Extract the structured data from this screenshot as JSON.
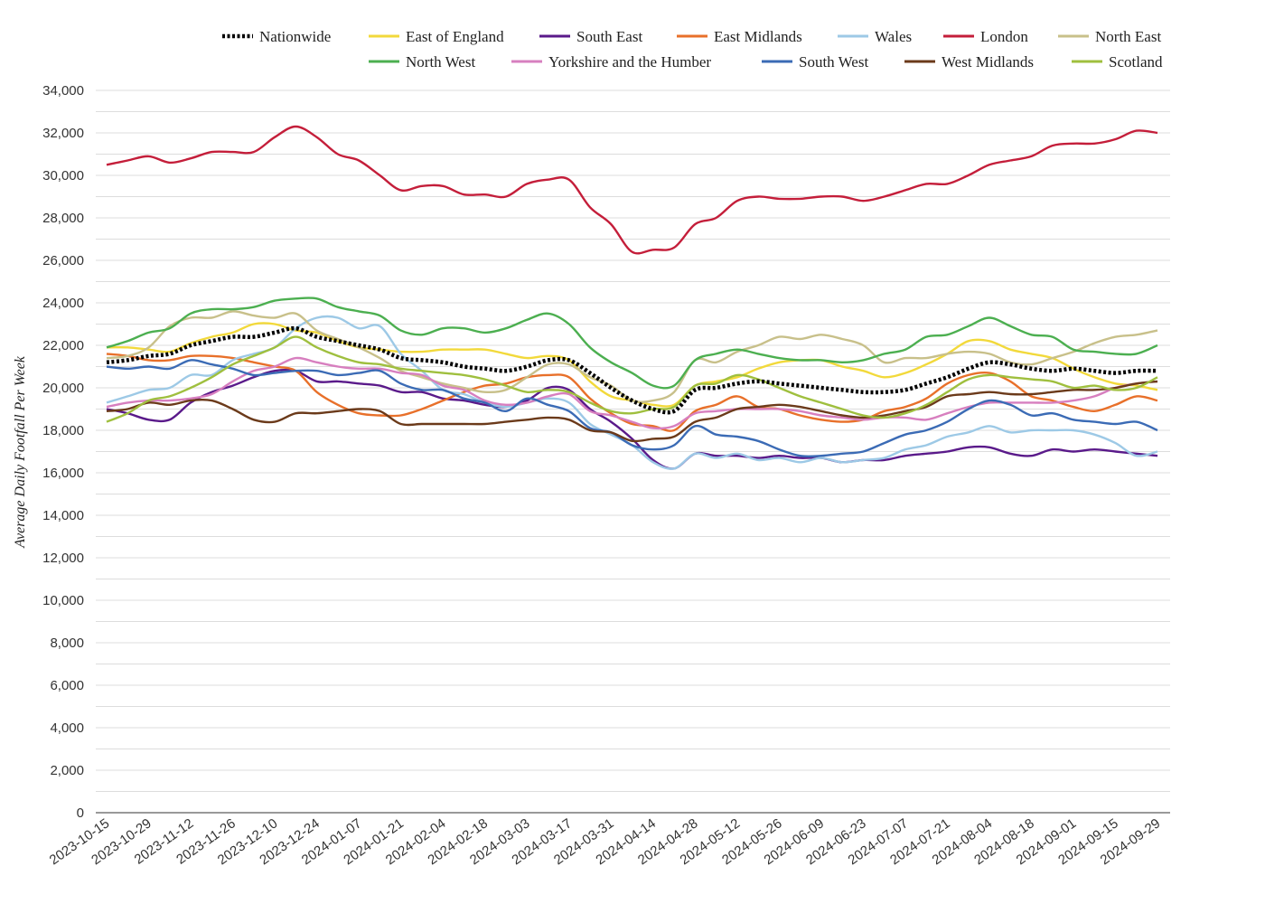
{
  "chart_data": {
    "type": "line",
    "title": "",
    "xlabel": "",
    "ylabel": "Average Daily Footfall Per Week",
    "ylim": [
      0,
      34000
    ],
    "yticks": [
      "0",
      "2,000",
      "4,000",
      "6,000",
      "8,000",
      "10,000",
      "12,000",
      "14,000",
      "16,000",
      "18,000",
      "20,000",
      "22,000",
      "24,000",
      "26,000",
      "28,000",
      "30,000",
      "32,000",
      "34,000"
    ],
    "grid": true,
    "legend_position": "top",
    "x_tick_labels": [
      "2023-10-15",
      "2023-10-29",
      "2023-11-12",
      "2023-11-26",
      "2023-12-10",
      "2023-12-24",
      "2024-01-07",
      "2024-01-21",
      "2024-02-04",
      "2024-02-18",
      "2024-03-03",
      "2024-03-17",
      "2024-03-31",
      "2024-04-14",
      "2024-04-28",
      "2024-05-12",
      "2024-05-26",
      "2024-06-09",
      "2024-06-23",
      "2024-07-07",
      "2024-07-21",
      "2024-08-04",
      "2024-08-18",
      "2024-09-01",
      "2024-09-15",
      "2024-09-29"
    ],
    "x": [
      "2023-10-15",
      "2023-10-22",
      "2023-10-29",
      "2023-11-05",
      "2023-11-12",
      "2023-11-19",
      "2023-11-26",
      "2023-12-03",
      "2023-12-10",
      "2023-12-17",
      "2023-12-24",
      "2023-12-31",
      "2024-01-07",
      "2024-01-14",
      "2024-01-21",
      "2024-01-28",
      "2024-02-04",
      "2024-02-11",
      "2024-02-18",
      "2024-02-25",
      "2024-03-03",
      "2024-03-10",
      "2024-03-17",
      "2024-03-24",
      "2024-03-31",
      "2024-04-07",
      "2024-04-14",
      "2024-04-21",
      "2024-04-28",
      "2024-05-05",
      "2024-05-12",
      "2024-05-19",
      "2024-05-26",
      "2024-06-02",
      "2024-06-09",
      "2024-06-16",
      "2024-06-23",
      "2024-06-30",
      "2024-07-07",
      "2024-07-14",
      "2024-07-21",
      "2024-07-28",
      "2024-08-04",
      "2024-08-11",
      "2024-08-18",
      "2024-08-25",
      "2024-09-01",
      "2024-09-08",
      "2024-09-15",
      "2024-09-22",
      "2024-09-29"
    ],
    "series": [
      {
        "name": "Nationwide",
        "color": "#000000",
        "dashed": true,
        "values": [
          21200,
          21300,
          21500,
          21600,
          22000,
          22200,
          22400,
          22400,
          22600,
          22800,
          22400,
          22200,
          22000,
          21800,
          21400,
          21300,
          21200,
          21000,
          20900,
          20800,
          21000,
          21300,
          21300,
          20700,
          20000,
          19400,
          19000,
          18900,
          19900,
          20000,
          20200,
          20300,
          20200,
          20100,
          20000,
          19900,
          19800,
          19800,
          19900,
          20200,
          20500,
          20900,
          21200,
          21100,
          20900,
          20800,
          20900,
          20800,
          20700,
          20800,
          20800
        ]
      },
      {
        "name": "East of England",
        "color": "#f2d93b",
        "values": [
          21900,
          21900,
          21800,
          21700,
          22100,
          22400,
          22600,
          23000,
          23000,
          22700,
          22600,
          22200,
          21900,
          21800,
          21700,
          21700,
          21800,
          21800,
          21800,
          21600,
          21400,
          21500,
          21300,
          20300,
          19600,
          19400,
          19200,
          19200,
          20100,
          20300,
          20500,
          20900,
          21200,
          21300,
          21300,
          21000,
          20800,
          20500,
          20700,
          21100,
          21600,
          22200,
          22200,
          21800,
          21600,
          21400,
          20900,
          20500,
          20200,
          20100,
          19900
        ]
      },
      {
        "name": "South East",
        "color": "#5a1a8a",
        "values": [
          19000,
          18800,
          18500,
          18500,
          19300,
          19800,
          20100,
          20500,
          20800,
          20800,
          20300,
          20300,
          20200,
          20100,
          19800,
          19800,
          19500,
          19400,
          19200,
          19100,
          19400,
          20000,
          19900,
          19000,
          18400,
          17600,
          16600,
          16200,
          16900,
          16800,
          16800,
          16700,
          16800,
          16700,
          16700,
          16500,
          16600,
          16600,
          16800,
          16900,
          17000,
          17200,
          17200,
          16900,
          16800,
          17100,
          17000,
          17100,
          17000,
          16900,
          16800
        ]
      },
      {
        "name": "East Midlands",
        "color": "#e8702a",
        "values": [
          21600,
          21500,
          21300,
          21300,
          21500,
          21500,
          21400,
          21200,
          21000,
          20800,
          19800,
          19200,
          18800,
          18700,
          18700,
          19000,
          19400,
          19800,
          20100,
          20200,
          20500,
          20600,
          20500,
          19500,
          18800,
          18300,
          18200,
          18000,
          18900,
          19200,
          19600,
          19100,
          19000,
          18700,
          18500,
          18400,
          18500,
          18900,
          19100,
          19500,
          20200,
          20600,
          20700,
          20300,
          19600,
          19400,
          19100,
          18900,
          19200,
          19600,
          19400
        ]
      },
      {
        "name": "Wales",
        "color": "#9dc9e6",
        "values": [
          19300,
          19600,
          19900,
          20000,
          20600,
          20600,
          21300,
          21600,
          21900,
          22800,
          23300,
          23300,
          22800,
          22900,
          21600,
          20800,
          19900,
          19700,
          19300,
          19100,
          19300,
          19500,
          19300,
          18300,
          17800,
          17300,
          16500,
          16200,
          16900,
          16700,
          16900,
          16600,
          16700,
          16500,
          16700,
          16500,
          16600,
          16700,
          17100,
          17300,
          17700,
          17900,
          18200,
          17900,
          18000,
          18000,
          18000,
          17800,
          17400,
          16800,
          17000
        ]
      },
      {
        "name": "London",
        "color": "#c41e3a",
        "values": [
          30500,
          30700,
          30900,
          30600,
          30800,
          31100,
          31100,
          31100,
          31800,
          32300,
          31800,
          31000,
          30700,
          30000,
          29300,
          29500,
          29500,
          29100,
          29100,
          29000,
          29600,
          29800,
          29800,
          28500,
          27700,
          26400,
          26500,
          26600,
          27700,
          28000,
          28800,
          29000,
          28900,
          28900,
          29000,
          29000,
          28800,
          29000,
          29300,
          29600,
          29600,
          30000,
          30500,
          30700,
          30900,
          31400,
          31500,
          31500,
          31700,
          32100,
          32000
        ]
      },
      {
        "name": "North East",
        "color": "#c8c08a",
        "values": [
          21400,
          21500,
          21900,
          22900,
          23300,
          23300,
          23600,
          23400,
          23300,
          23500,
          22700,
          22300,
          21900,
          21400,
          20800,
          20500,
          20200,
          20000,
          19800,
          19900,
          20500,
          21100,
          21100,
          20500,
          20100,
          19400,
          19400,
          19800,
          21300,
          21200,
          21700,
          22000,
          22400,
          22300,
          22500,
          22300,
          22000,
          21200,
          21400,
          21400,
          21600,
          21700,
          21600,
          21200,
          21100,
          21400,
          21700,
          22100,
          22400,
          22500,
          22700
        ]
      },
      {
        "name": "North West",
        "color": "#4caf50",
        "values": [
          21900,
          22200,
          22600,
          22800,
          23500,
          23700,
          23700,
          23800,
          24100,
          24200,
          24200,
          23800,
          23600,
          23400,
          22700,
          22500,
          22800,
          22800,
          22600,
          22800,
          23200,
          23500,
          23000,
          21900,
          21200,
          20700,
          20100,
          20100,
          21300,
          21600,
          21800,
          21600,
          21400,
          21300,
          21300,
          21200,
          21300,
          21600,
          21800,
          22400,
          22500,
          22900,
          23300,
          22900,
          22500,
          22400,
          21800,
          21700,
          21600,
          21600,
          22000
        ]
      },
      {
        "name": "Yorkshire and the Humber",
        "color": "#d77fbf",
        "values": [
          19100,
          19300,
          19400,
          19400,
          19500,
          19700,
          20300,
          20800,
          21000,
          21400,
          21200,
          21000,
          20900,
          20900,
          20700,
          20600,
          20100,
          19900,
          19400,
          19200,
          19300,
          19600,
          19700,
          18900,
          18700,
          18400,
          18100,
          18200,
          18800,
          18900,
          19000,
          19000,
          19000,
          18900,
          18700,
          18600,
          18500,
          18600,
          18600,
          18500,
          18800,
          19100,
          19300,
          19300,
          19300,
          19300,
          19400,
          19600,
          20000,
          20200,
          20300
        ]
      },
      {
        "name": "South West",
        "color": "#3b6bb5",
        "values": [
          21000,
          20900,
          21000,
          20900,
          21300,
          21100,
          20900,
          20600,
          20700,
          20800,
          20800,
          20600,
          20700,
          20800,
          20200,
          19900,
          19900,
          19500,
          19300,
          18900,
          19500,
          19200,
          18900,
          18100,
          17900,
          17300,
          17100,
          17300,
          18200,
          17800,
          17700,
          17500,
          17100,
          16800,
          16800,
          16900,
          17000,
          17400,
          17800,
          18000,
          18400,
          19000,
          19400,
          19200,
          18700,
          18800,
          18500,
          18400,
          18300,
          18400,
          18000
        ]
      },
      {
        "name": "West Midlands",
        "color": "#6b3a1a",
        "values": [
          18900,
          19000,
          19300,
          19200,
          19400,
          19400,
          19000,
          18500,
          18400,
          18800,
          18800,
          18900,
          19000,
          18900,
          18300,
          18300,
          18300,
          18300,
          18300,
          18400,
          18500,
          18600,
          18500,
          18000,
          17900,
          17500,
          17600,
          17700,
          18400,
          18600,
          19000,
          19100,
          19200,
          19100,
          18900,
          18700,
          18600,
          18700,
          18900,
          19100,
          19600,
          19700,
          19800,
          19700,
          19700,
          19800,
          19900,
          19900,
          20000,
          20200,
          20300
        ]
      },
      {
        "name": "Scotland",
        "color": "#9fbf3e",
        "values": [
          18400,
          18800,
          19400,
          19600,
          20000,
          20500,
          21100,
          21500,
          21900,
          22400,
          21900,
          21500,
          21200,
          21100,
          20900,
          20800,
          20700,
          20600,
          20400,
          20100,
          19800,
          19900,
          19800,
          19300,
          18900,
          18800,
          19000,
          19100,
          20100,
          20200,
          20600,
          20400,
          20000,
          19600,
          19300,
          19000,
          18700,
          18600,
          18800,
          19200,
          19800,
          20400,
          20600,
          20500,
          20400,
          20300,
          20000,
          20100,
          19900,
          20000,
          20500
        ]
      }
    ]
  }
}
